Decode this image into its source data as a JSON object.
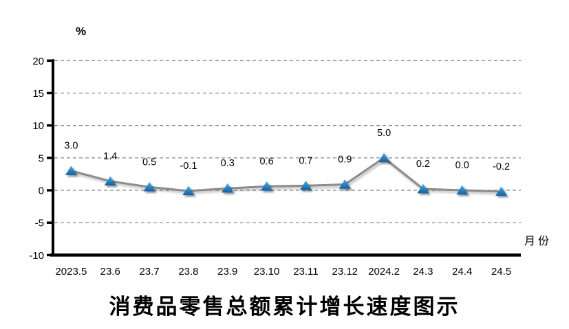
{
  "chart_data": {
    "type": "line",
    "title": "消费品零售总额累计增长速度图示",
    "unit_label": "%",
    "xlabel": "月份",
    "categories": [
      "2023.5",
      "23.6",
      "23.7",
      "23.8",
      "23.9",
      "23.10",
      "23.11",
      "23.12",
      "2024.2",
      "24.3",
      "24.4",
      "24.5"
    ],
    "values": [
      3.0,
      1.4,
      0.5,
      -0.1,
      0.3,
      0.6,
      0.7,
      0.9,
      5.0,
      0.2,
      0.0,
      -0.2
    ],
    "data_labels": [
      "3.0",
      "1.4",
      "0.5",
      "-0.1",
      "0.3",
      "0.6",
      "0.7",
      "0.9",
      "5.0",
      "0.2",
      "0.0",
      "-0.2"
    ],
    "y_ticks": [
      20,
      15,
      10,
      5,
      0,
      -5,
      -10
    ],
    "ylim": [
      -10,
      20
    ],
    "grid": "horizontal-dashed",
    "legend": "none",
    "marker": "triangle",
    "colors": {
      "line": "#8B8B8B",
      "marker_gradient_top": "#4FA8DE",
      "marker_gradient_bottom": "#1160A2",
      "gridline": "#878787",
      "axis": "#000000",
      "text": "#000000",
      "background": "#FFFFFF"
    }
  }
}
